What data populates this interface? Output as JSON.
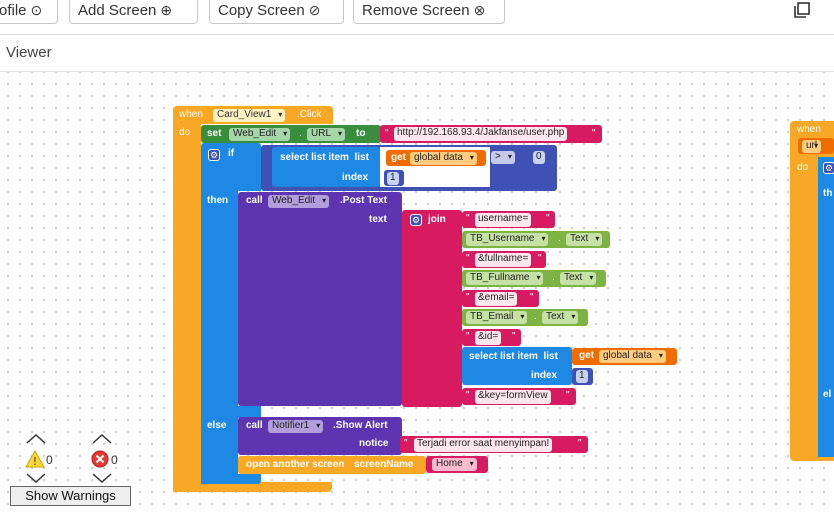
{
  "toolbar": {
    "profile_label": "ofile",
    "add_screen_label": "Add Screen",
    "copy_screen_label": "Copy Screen",
    "remove_screen_label": "Remove Screen"
  },
  "viewer": {
    "title": "Viewer"
  },
  "blocks": {
    "when": "when",
    "do": "do",
    "event_component": "Card_View1",
    "event_name": ".Click",
    "set": "set",
    "set_component": "Web_Edit",
    "set_property": "URL",
    "to": "to",
    "url_string": "http://192.168.93.4/Jakfanse/user.php",
    "if": "if",
    "select_list_item": "select list item",
    "list": "list",
    "get": "get",
    "global_data": "global data",
    "compare_op": ">",
    "compare_value": "0",
    "index": "index",
    "index_value": "1",
    "then": "then",
    "call": "call",
    "post_component": "Web_Edit",
    "post_method": ".Post Text",
    "text": "text",
    "join": "join",
    "s_username": "username=",
    "tb_username": "TB_Username",
    "text_prop": "Text",
    "s_fullname": "&fullname=",
    "tb_fullname": "TB_Fullname",
    "s_email": "&email=",
    "tb_email": "TB_Email",
    "s_id": "&id=",
    "s_key": "&key=formView",
    "else": "else",
    "alert_component": "Notifier1",
    "alert_method": ".Show Alert",
    "notice": "notice",
    "notice_text": "Terjadi error saat menyimpan!",
    "open_screen": "open another screen",
    "screen_name": "screenName",
    "screen_value": "Home",
    "side_when": "when",
    "side_url": "url",
    "side_do": "do",
    "side_then": "th",
    "side_else": "el"
  },
  "warnings": {
    "warning_count": "0",
    "error_count": "0",
    "show_warnings_label": "Show Warnings"
  },
  "colors": {
    "event": "#f9a825",
    "component": "#388e3c",
    "text": "#d81b60",
    "control": "#1e88e5",
    "list": "#1e88e5",
    "variable": "#ef6c00",
    "math": "#3f51b5",
    "procedure": "#5e35b1",
    "property": "#7cb342"
  }
}
